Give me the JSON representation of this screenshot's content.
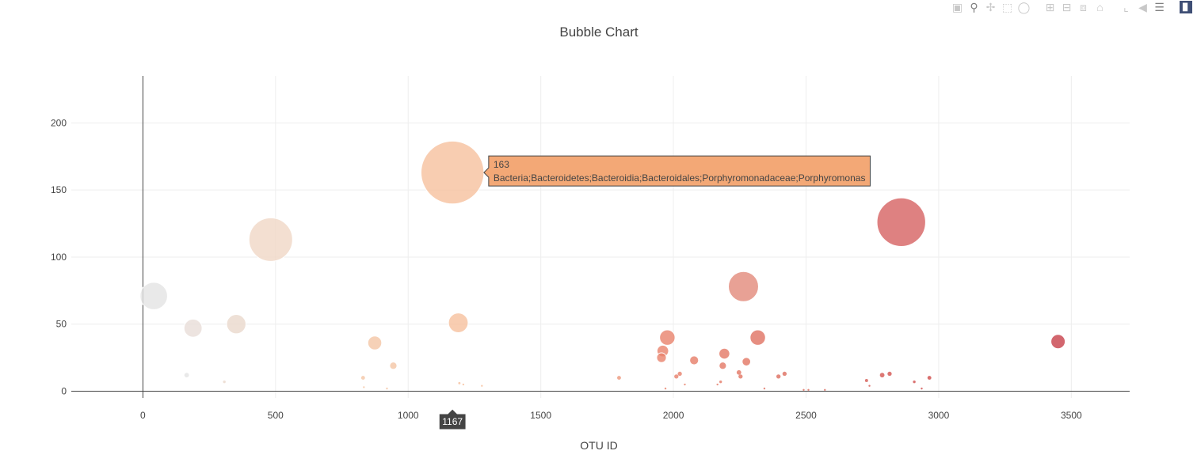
{
  "modebar": {
    "icons": [
      "camera-icon",
      "zoom-icon",
      "pan-icon",
      "box-select-icon",
      "lasso-icon",
      "zoom-in-icon",
      "zoom-out-icon",
      "autoscale-icon",
      "home-icon",
      "spike-lines-icon",
      "hover-closest-icon",
      "hover-compare-icon",
      "plotly-logo-icon"
    ]
  },
  "chart_data": {
    "type": "scatter",
    "title": "Bubble Chart",
    "xlabel": "OTU ID",
    "ylabel": "",
    "xlim": [
      -270,
      3720
    ],
    "ylim": [
      -5,
      235
    ],
    "x_ticks": [
      0,
      500,
      1000,
      1500,
      2000,
      2500,
      3000,
      3500
    ],
    "y_ticks": [
      0,
      50,
      100,
      150,
      200
    ],
    "grid": true,
    "colorscale": "white-to-red (Reds)",
    "points": [
      {
        "x": 41,
        "y": 71,
        "size": 71,
        "color": "#e4e3e3"
      },
      {
        "x": 189,
        "y": 47,
        "size": 47,
        "color": "#e8ddd8"
      },
      {
        "x": 352,
        "y": 50,
        "size": 50,
        "color": "#ead8cc"
      },
      {
        "x": 482,
        "y": 113,
        "size": 113,
        "color": "#f0d7c6"
      },
      {
        "x": 165,
        "y": 12,
        "size": 12,
        "color": "#e4e3e3"
      },
      {
        "x": 307,
        "y": 7,
        "size": 7,
        "color": "#ead8cc"
      },
      {
        "x": 830,
        "y": 10,
        "size": 10,
        "color": "#f4c6a5"
      },
      {
        "x": 874,
        "y": 36,
        "size": 36,
        "color": "#f4c6a5"
      },
      {
        "x": 944,
        "y": 19,
        "size": 19,
        "color": "#f4c6a5"
      },
      {
        "x": 1167,
        "y": 163,
        "size": 163,
        "color": "#f6c09e"
      },
      {
        "x": 1189,
        "y": 51,
        "size": 51,
        "color": "#f6c09e"
      },
      {
        "x": 1193,
        "y": 6,
        "size": 6,
        "color": "#f6c09e"
      },
      {
        "x": 1208,
        "y": 5,
        "size": 5,
        "color": "#f6c09e"
      },
      {
        "x": 1278,
        "y": 4,
        "size": 4,
        "color": "#f6c09e"
      },
      {
        "x": 833,
        "y": 3,
        "size": 3,
        "color": "#f4c6a5"
      },
      {
        "x": 1795,
        "y": 10,
        "size": 10,
        "color": "#ec977c"
      },
      {
        "x": 1960,
        "y": 30,
        "size": 30,
        "color": "#e8826b"
      },
      {
        "x": 1977,
        "y": 40,
        "size": 40,
        "color": "#e8826b"
      },
      {
        "x": 1955,
        "y": 25,
        "size": 25,
        "color": "#e8826b"
      },
      {
        "x": 2011,
        "y": 11,
        "size": 11,
        "color": "#e7806a"
      },
      {
        "x": 2024,
        "y": 13,
        "size": 13,
        "color": "#e7806a"
      },
      {
        "x": 2043,
        "y": 5,
        "size": 5,
        "color": "#e7806a"
      },
      {
        "x": 2078,
        "y": 23,
        "size": 23,
        "color": "#e67d68"
      },
      {
        "x": 2166,
        "y": 5,
        "size": 5,
        "color": "#e47865"
      },
      {
        "x": 2178,
        "y": 7,
        "size": 7,
        "color": "#e47865"
      },
      {
        "x": 2186,
        "y": 19,
        "size": 19,
        "color": "#e47865"
      },
      {
        "x": 2192,
        "y": 28,
        "size": 28,
        "color": "#e47865"
      },
      {
        "x": 2247,
        "y": 14,
        "size": 14,
        "color": "#e27563"
      },
      {
        "x": 2253,
        "y": 11,
        "size": 11,
        "color": "#e27563"
      },
      {
        "x": 2264,
        "y": 78,
        "size": 78,
        "color": "#e2897a"
      },
      {
        "x": 2275,
        "y": 22,
        "size": 22,
        "color": "#e27563"
      },
      {
        "x": 2318,
        "y": 40,
        "size": 40,
        "color": "#e07262"
      },
      {
        "x": 2396,
        "y": 11,
        "size": 11,
        "color": "#dd6d5e"
      },
      {
        "x": 2419,
        "y": 13,
        "size": 13,
        "color": "#dd6d5e"
      },
      {
        "x": 2728,
        "y": 8,
        "size": 8,
        "color": "#d55a53"
      },
      {
        "x": 2739,
        "y": 4,
        "size": 4,
        "color": "#d55a53"
      },
      {
        "x": 2787,
        "y": 12,
        "size": 12,
        "color": "#d45651"
      },
      {
        "x": 2815,
        "y": 13,
        "size": 13,
        "color": "#d35450"
      },
      {
        "x": 2859,
        "y": 126,
        "size": 126,
        "color": "#d66262"
      },
      {
        "x": 2908,
        "y": 7,
        "size": 7,
        "color": "#d14f4d"
      },
      {
        "x": 2965,
        "y": 10,
        "size": 10,
        "color": "#cf4b4a"
      },
      {
        "x": 3450,
        "y": 37,
        "size": 37,
        "color": "#c7404a"
      },
      {
        "x": 1970,
        "y": 2,
        "size": 2,
        "color": "#e8826b"
      },
      {
        "x": 2343,
        "y": 2,
        "size": 2,
        "color": "#e07262"
      },
      {
        "x": 2491,
        "y": 1,
        "size": 1,
        "color": "#dd6d5e"
      },
      {
        "x": 2509,
        "y": 1,
        "size": 1,
        "color": "#dd6d5e"
      },
      {
        "x": 2571,
        "y": 1,
        "size": 1,
        "color": "#dc6a5c"
      },
      {
        "x": 2936,
        "y": 2,
        "size": 2,
        "color": "#d14f4d"
      },
      {
        "x": 920,
        "y": 2,
        "size": 2,
        "color": "#f4c6a5"
      }
    ],
    "hover": {
      "x_value": "1167",
      "y_value": "163",
      "text": "Bacteria;Bacteroidetes;Bacteroidia;Bacteroidales;Porphyromonadaceae;Porphyromonas",
      "color": "#f3a876"
    }
  }
}
